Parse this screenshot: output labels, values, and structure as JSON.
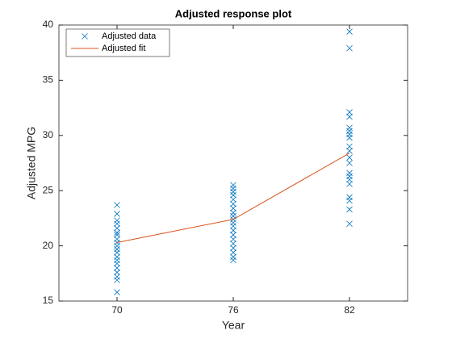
{
  "chart_data": {
    "type": "scatter",
    "title": "Adjusted response plot",
    "xlabel": "Year",
    "ylabel": "Adjusted MPG",
    "xlim": [
      67,
      85
    ],
    "xticks": [
      70,
      76,
      82
    ],
    "ylim": [
      15,
      40
    ],
    "yticks": [
      15,
      20,
      25,
      30,
      35,
      40
    ],
    "grid": false,
    "legend": "upper left",
    "series": [
      {
        "name": "Adjusted data",
        "color": "#0072bd",
        "style": "marker",
        "x": [
          70,
          70,
          70,
          70,
          70,
          70,
          70,
          70,
          70,
          70,
          70,
          70,
          70,
          70,
          70,
          70,
          70,
          70,
          70,
          70,
          76,
          76,
          76,
          76,
          76,
          76,
          76,
          76,
          76,
          76,
          76,
          76,
          76,
          76,
          76,
          76,
          76,
          76,
          76,
          76,
          82,
          82,
          82,
          82,
          82,
          82,
          82,
          82,
          82,
          82,
          82,
          82,
          82,
          82,
          82,
          82,
          82,
          82,
          82,
          82
        ],
        "values": [
          23.7,
          22.9,
          22.3,
          22.0,
          21.6,
          21.2,
          21.0,
          20.6,
          20.3,
          20.0,
          19.7,
          19.4,
          19.0,
          18.7,
          18.4,
          18.0,
          17.6,
          17.2,
          16.9,
          15.8,
          25.5,
          25.2,
          24.9,
          24.6,
          24.2,
          23.8,
          23.4,
          23.0,
          22.7,
          22.4,
          22.1,
          21.8,
          21.4,
          21.0,
          20.6,
          20.2,
          19.8,
          19.4,
          19.0,
          18.7,
          39.4,
          37.9,
          32.1,
          31.7,
          30.7,
          30.4,
          30.1,
          29.8,
          29.0,
          28.6,
          28.0,
          27.5,
          26.6,
          26.3,
          26.0,
          25.6,
          24.4,
          24.1,
          23.3,
          22.0
        ]
      },
      {
        "name": "Adjusted fit",
        "color": "#d95319",
        "style": "line",
        "x": [
          70,
          76,
          82
        ],
        "values": [
          20.3,
          22.4,
          28.4
        ]
      }
    ]
  }
}
